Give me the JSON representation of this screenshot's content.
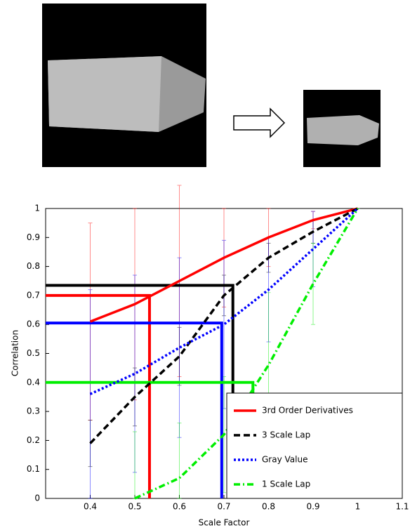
{
  "chart_data": {
    "type": "line",
    "x_label": "Scale Factor",
    "y_label": "Correlation",
    "x": [
      0.4,
      0.5,
      0.6,
      0.7,
      0.8,
      0.9,
      1.0
    ],
    "xlim": [
      0.3,
      1.1
    ],
    "xticks": [
      0.4,
      0.5,
      0.6,
      0.7,
      0.8,
      0.9,
      1,
      1.1
    ],
    "ylim": [
      0,
      1
    ],
    "yticks": [
      0,
      0.1,
      0.2,
      0.3,
      0.4,
      0.5,
      0.6,
      0.7,
      0.8,
      0.9,
      1
    ],
    "legend": "lower right",
    "series": [
      {
        "name": "3rd Order Derivatives",
        "color": "#ff0000",
        "style": "solid",
        "values": [
          0.61,
          0.67,
          0.75,
          0.83,
          0.9,
          0.96,
          1.0
        ],
        "errors": [
          0.34,
          0.33,
          0.33,
          0.17,
          0.1,
          0.03,
          0
        ],
        "threshold_y": 0.7,
        "threshold_x": 0.533
      },
      {
        "name": "3 Scale Lap",
        "color": "#000000",
        "style": "dashed",
        "values": [
          0.19,
          0.35,
          0.49,
          0.7,
          0.83,
          0.92,
          1.0
        ],
        "errors": [
          0.08,
          0.1,
          0.1,
          0.07,
          0.05,
          0.04,
          0
        ],
        "threshold_y": 0.735,
        "threshold_x": 0.72
      },
      {
        "name": "Gray Value",
        "color": "#0000ff",
        "style": "dotted",
        "values": [
          0.36,
          0.43,
          0.52,
          0.6,
          0.72,
          0.86,
          1.0
        ],
        "errors": [
          0.36,
          0.34,
          0.31,
          0.29,
          0.18,
          0.13,
          0
        ],
        "threshold_y": 0.605,
        "threshold_x": 0.695
      },
      {
        "name": "1 Scale Lap",
        "color": "#00ee00",
        "style": "dashdot",
        "values": [
          null,
          0,
          0.07,
          0.22,
          0.46,
          0.74,
          1.0
        ],
        "errors": [
          null,
          0.23,
          0.19,
          0.2,
          0.25,
          0.14,
          0
        ],
        "threshold_y": 0.4,
        "threshold_x": 0.765
      }
    ]
  }
}
